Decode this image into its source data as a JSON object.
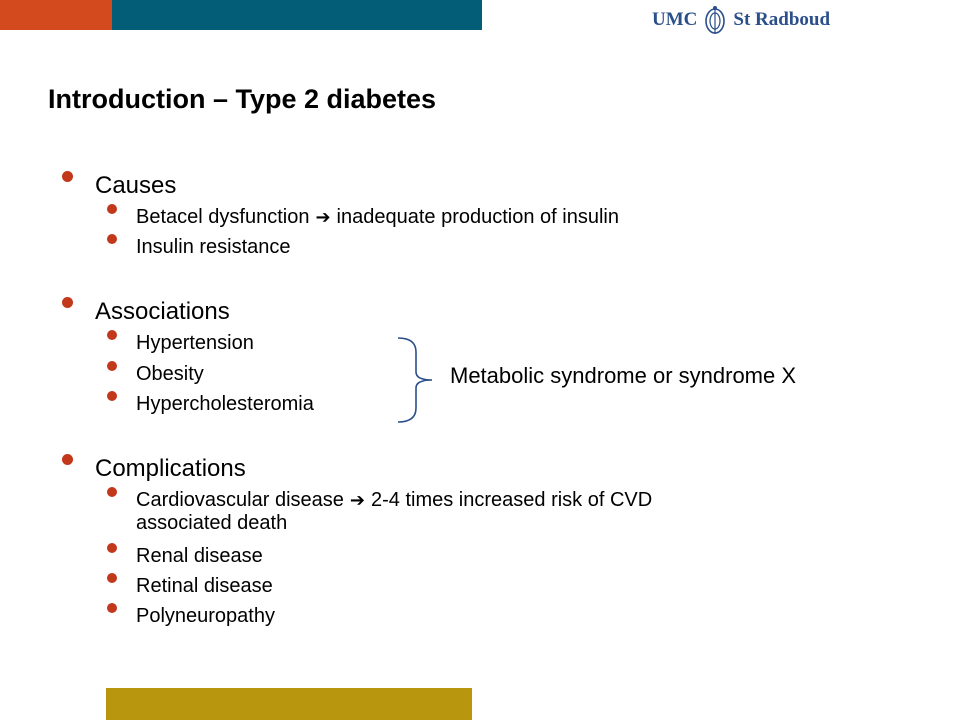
{
  "logo": {
    "left": "UMC",
    "right": "St Radboud"
  },
  "title": "Introduction – Type 2 diabetes",
  "sections": {
    "causes": {
      "label": "Causes",
      "items": {
        "betacel_a": "Betacel dysfunction",
        "betacel_b": "inadequate production of insulin",
        "resistance": "Insulin resistance"
      }
    },
    "associations": {
      "label": "Associations",
      "items": {
        "hypertension": "Hypertension",
        "obesity": "Obesity",
        "hyperchol": "Hypercholesteromia"
      },
      "group_label": "Metabolic syndrome or syndrome X"
    },
    "complications": {
      "label": "Complications",
      "items": {
        "cvd_a": "Cardiovascular disease",
        "cvd_b": "2-4 times increased risk of CVD",
        "cvd_c": "associated death",
        "renal": "Renal disease",
        "retinal": "Retinal disease",
        "poly": "Polyneuropathy"
      }
    }
  },
  "arrow_glyph": "➔",
  "colors": {
    "red": "#d24a1e",
    "teal": "#035d77",
    "gold": "#b8960e",
    "bullet": "#c2381b",
    "logo": "#2b4f8a"
  }
}
